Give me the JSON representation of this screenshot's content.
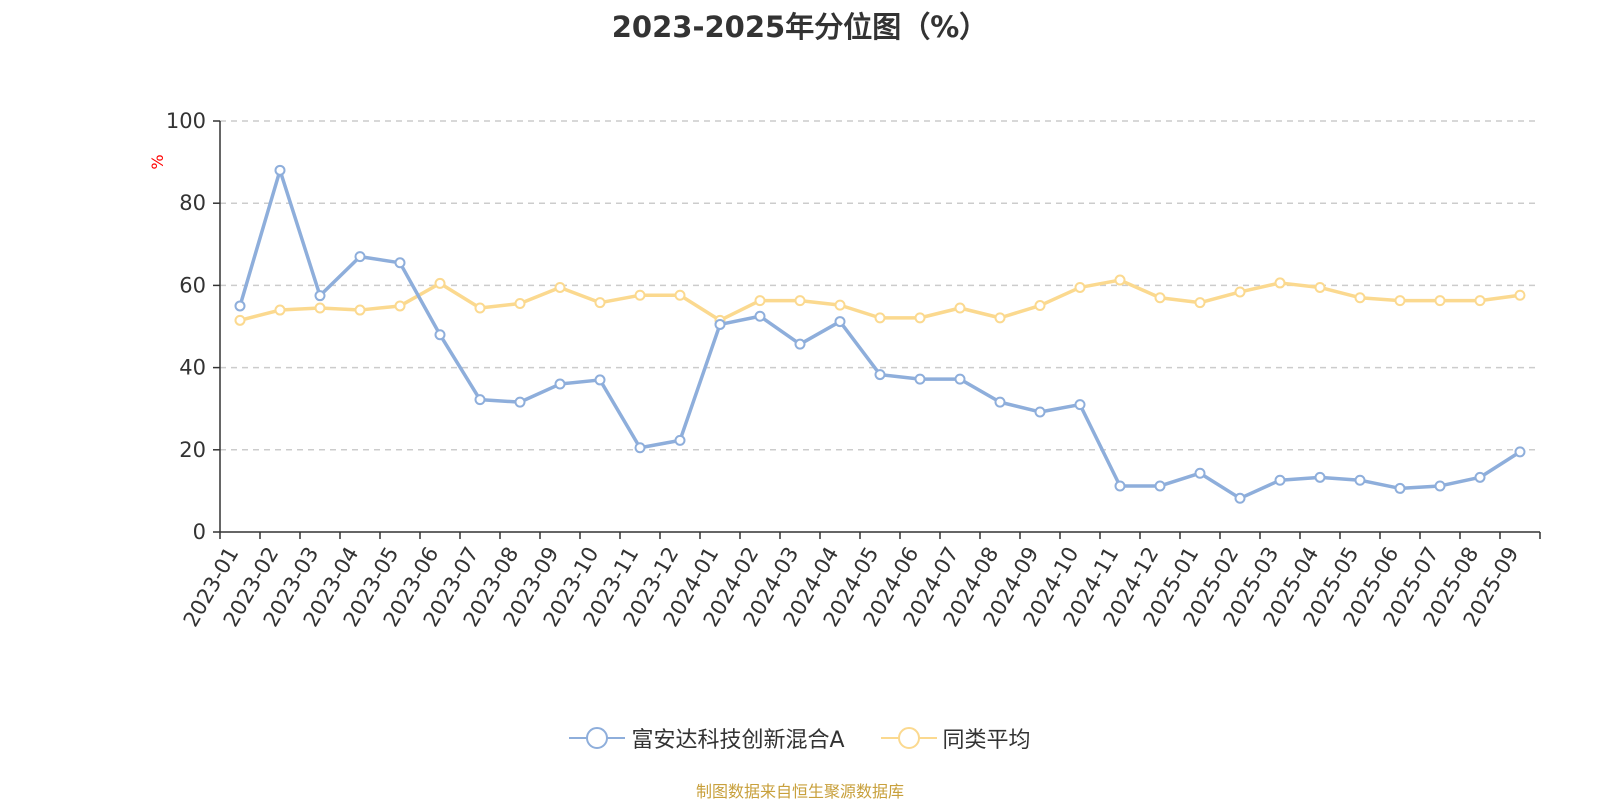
{
  "chart_data": {
    "type": "line",
    "title": "2023-2025年分位图（%）",
    "ylabel": "%",
    "ylim": [
      0,
      100
    ],
    "yticks": [
      0,
      20,
      40,
      60,
      80,
      100
    ],
    "grid": true,
    "legend_position": "bottom",
    "categories": [
      "2023-01",
      "2023-02",
      "2023-03",
      "2023-04",
      "2023-05",
      "2023-06",
      "2023-07",
      "2023-08",
      "2023-09",
      "2023-10",
      "2023-11",
      "2023-12",
      "2024-01",
      "2024-02",
      "2024-03",
      "2024-04",
      "2024-05",
      "2024-06",
      "2024-07",
      "2024-08",
      "2024-09",
      "2024-10",
      "2024-11",
      "2024-12",
      "2025-01",
      "2025-02",
      "2025-03",
      "2025-04",
      "2025-05",
      "2025-06",
      "2025-07",
      "2025-08",
      "2025-09"
    ],
    "series": [
      {
        "name": "富安达科技创新混合A",
        "color": "#8eaedb",
        "values": [
          55,
          88,
          57.5,
          67,
          65.5,
          48,
          32.2,
          31.6,
          36,
          37,
          20.5,
          22.3,
          50.5,
          52.5,
          45.7,
          51.2,
          38.3,
          37.2,
          37.2,
          31.6,
          29.2,
          31,
          11.2,
          11.2,
          14.3,
          8.2,
          12.6,
          13.3,
          12.6,
          10.6,
          11.2,
          13.3,
          19.5
        ]
      },
      {
        "name": "同类平均",
        "color": "#fbd98f",
        "values": [
          51.5,
          54,
          54.5,
          54,
          55,
          60.5,
          54.5,
          55.6,
          59.5,
          55.8,
          57.6,
          57.6,
          51.5,
          56.3,
          56.3,
          55.2,
          52.1,
          52.1,
          54.5,
          52.1,
          55.1,
          59.5,
          61.3,
          57,
          55.8,
          58.4,
          60.6,
          59.5,
          57,
          56.3,
          56.3,
          56.3,
          57.6
        ]
      }
    ]
  },
  "source_text": "制图数据来自恒生聚源数据库",
  "colors": {
    "title": "#333333",
    "axis": "#333333",
    "grid": "#cccccc",
    "ylabel": "#ff0000",
    "source": "#c8a03c"
  }
}
